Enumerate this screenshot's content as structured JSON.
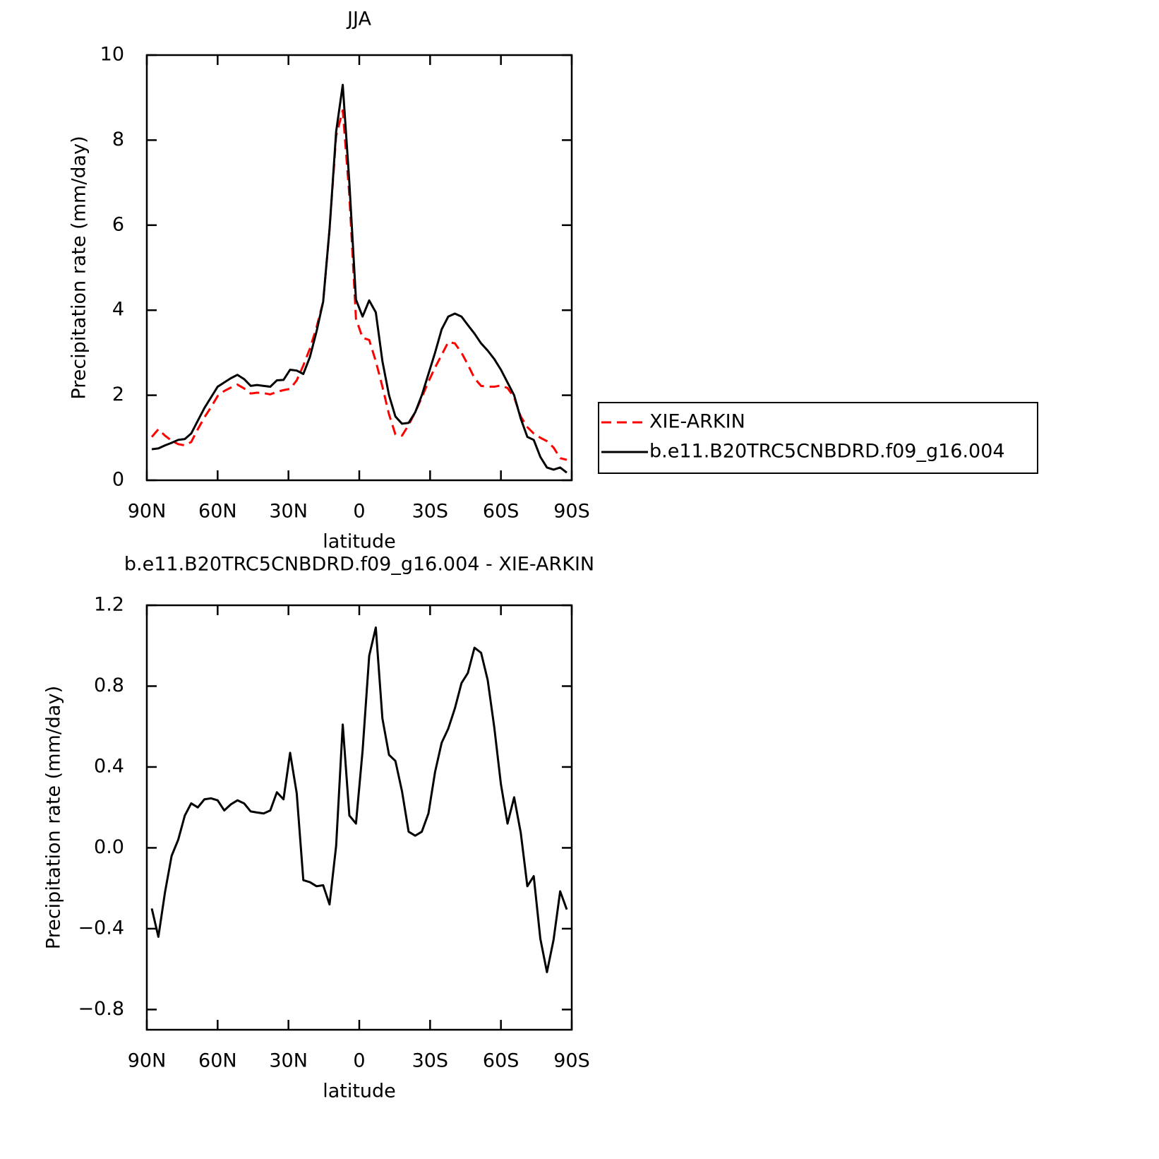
{
  "chart_data": [
    {
      "type": "line",
      "title": "JJA",
      "xlabel": "latitude",
      "ylabel": "Precipitation rate (mm/day)",
      "x": [
        87.9,
        85.1,
        82.3,
        79.5,
        76.7,
        73.9,
        71.2,
        68.4,
        65.6,
        62.8,
        60.0,
        57.2,
        54.4,
        51.6,
        48.8,
        46.0,
        43.3,
        40.5,
        37.7,
        34.9,
        32.1,
        29.3,
        26.5,
        23.7,
        20.9,
        18.1,
        15.3,
        12.6,
        9.8,
        7.0,
        4.2,
        1.4,
        -1.4,
        -4.2,
        -7.0,
        -9.8,
        -12.6,
        -15.3,
        -18.1,
        -20.9,
        -23.7,
        -26.5,
        -29.3,
        -32.1,
        -34.9,
        -37.7,
        -40.5,
        -43.3,
        -46.0,
        -48.8,
        -51.6,
        -54.4,
        -57.2,
        -60.0,
        -62.8,
        -65.6,
        -68.4,
        -71.2,
        -73.9,
        -76.7,
        -79.5,
        -82.3,
        -85.1,
        -87.9
      ],
      "series": [
        {
          "name": "XIE-ARKIN",
          "color": "#ff0000",
          "style": "dashed",
          "values": [
            1.02,
            1.2,
            1.05,
            0.93,
            0.85,
            0.82,
            0.9,
            1.2,
            1.48,
            1.72,
            1.98,
            2.1,
            2.18,
            2.25,
            2.16,
            2.04,
            2.06,
            2.05,
            2.02,
            2.08,
            2.12,
            2.15,
            2.35,
            2.7,
            3.1,
            3.6,
            4.2,
            5.9,
            8.1,
            8.7,
            6.7,
            3.8,
            3.35,
            3.3,
            2.8,
            2.2,
            1.55,
            1.08,
            1.05,
            1.3,
            1.6,
            1.95,
            2.32,
            2.65,
            2.95,
            3.25,
            3.22,
            3.0,
            2.72,
            2.4,
            2.22,
            2.2,
            2.2,
            2.23,
            2.17,
            1.95,
            1.5,
            1.25,
            1.1,
            1.0,
            0.92,
            0.77,
            0.52,
            0.48
          ]
        },
        {
          "name": "b.e11.B20TRC5CNBDRD.f09_g16.004",
          "color": "#000000",
          "style": "solid",
          "values": [
            0.73,
            0.75,
            0.82,
            0.88,
            0.95,
            0.97,
            1.1,
            1.4,
            1.7,
            1.95,
            2.2,
            2.3,
            2.4,
            2.48,
            2.38,
            2.22,
            2.24,
            2.22,
            2.2,
            2.35,
            2.36,
            2.6,
            2.58,
            2.5,
            2.9,
            3.5,
            4.2,
            5.9,
            8.2,
            9.3,
            7.0,
            4.25,
            3.85,
            4.23,
            3.95,
            2.8,
            2.0,
            1.5,
            1.33,
            1.35,
            1.6,
            2.0,
            2.5,
            3.0,
            3.55,
            3.85,
            3.92,
            3.85,
            3.65,
            3.45,
            3.22,
            3.05,
            2.85,
            2.6,
            2.3,
            2.0,
            1.45,
            1.02,
            0.95,
            0.55,
            0.3,
            0.25,
            0.3,
            0.18
          ]
        }
      ],
      "xlim": [
        90,
        -90
      ],
      "xticks": [
        {
          "value": 90,
          "label": "90N"
        },
        {
          "value": 60,
          "label": "60N"
        },
        {
          "value": 30,
          "label": "30N"
        },
        0,
        {
          "value": -30,
          "label": "30S"
        },
        {
          "value": -60,
          "label": "60S"
        },
        {
          "value": -90,
          "label": "90S"
        }
      ],
      "ylim": [
        0,
        10
      ],
      "yticks": [
        0,
        2,
        4,
        6,
        8,
        10
      ],
      "legend": "right"
    },
    {
      "type": "line",
      "title": "b.e11.B20TRC5CNBDRD.f09_g16.004 - XIE-ARKIN",
      "xlabel": "latitude",
      "ylabel": "Precipitation rate (mm/day)",
      "x": [
        87.9,
        85.1,
        82.3,
        79.5,
        76.7,
        73.9,
        71.2,
        68.4,
        65.6,
        62.8,
        60.0,
        57.2,
        54.4,
        51.6,
        48.8,
        46.0,
        43.3,
        40.5,
        37.7,
        34.9,
        32.1,
        29.3,
        26.5,
        23.7,
        20.9,
        18.1,
        15.3,
        12.6,
        9.8,
        7.0,
        4.2,
        1.4,
        -1.4,
        -4.2,
        -7.0,
        -9.8,
        -12.6,
        -15.3,
        -18.1,
        -20.9,
        -23.7,
        -26.5,
        -29.3,
        -32.1,
        -34.9,
        -37.7,
        -40.5,
        -43.3,
        -46.0,
        -48.8,
        -51.6,
        -54.4,
        -57.2,
        -60.0,
        -62.8,
        -65.6,
        -68.4,
        -71.2,
        -73.9,
        -76.7,
        -79.5,
        -82.3,
        -85.1,
        -87.9
      ],
      "color": "#000000",
      "values": [
        -0.3,
        -0.44,
        -0.22,
        -0.04,
        0.04,
        0.16,
        0.22,
        0.2,
        0.24,
        0.245,
        0.235,
        0.185,
        0.215,
        0.235,
        0.22,
        0.18,
        0.175,
        0.17,
        0.185,
        0.275,
        0.24,
        0.47,
        0.27,
        -0.16,
        -0.17,
        -0.19,
        -0.185,
        -0.28,
        0.01,
        0.61,
        0.16,
        0.12,
        0.48,
        0.95,
        1.09,
        0.64,
        0.46,
        0.43,
        0.28,
        0.08,
        0.06,
        0.08,
        0.17,
        0.375,
        0.52,
        0.59,
        0.69,
        0.815,
        0.865,
        0.99,
        0.965,
        0.83,
        0.595,
        0.315,
        0.12,
        0.25,
        0.075,
        -0.19,
        -0.14,
        -0.45,
        -0.615,
        -0.455,
        -0.215,
        -0.305
      ],
      "xlim": [
        90,
        -90
      ],
      "xticks": [
        {
          "value": 90,
          "label": "90N"
        },
        {
          "value": 60,
          "label": "60N"
        },
        {
          "value": 30,
          "label": "30N"
        },
        0,
        {
          "value": -30,
          "label": "30S"
        },
        {
          "value": -60,
          "label": "60S"
        },
        {
          "value": -90,
          "label": "90S"
        }
      ],
      "ylim": [
        -0.9,
        1.2
      ],
      "yticks": [
        {
          "value": -0.8,
          "label": "−0.8"
        },
        {
          "value": -0.4,
          "label": "−0.4"
        },
        {
          "value": 0,
          "label": "0.0"
        },
        0.4,
        0.8,
        1.2
      ]
    }
  ]
}
